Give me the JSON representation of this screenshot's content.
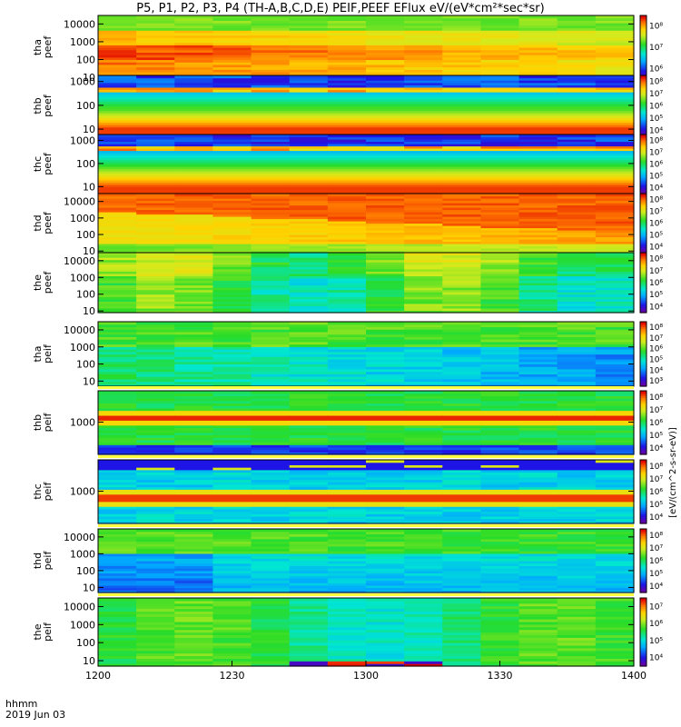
{
  "header": {
    "title": "P5, P1, P2, P3, P4 (TH-A,B,C,D,E) PEIF,PEEF EFlux eV/(eV*cm²*sec*sr)"
  },
  "footer": {
    "time_label": "hhmm",
    "date_label": "2019 Jun 03"
  },
  "colorbar_units_label": "[eV/(cm^2-s-sr-eV)]",
  "chart_data": {
    "type": "heatmap",
    "x_axis": {
      "tick_labels": [
        "1200",
        "1230",
        "1300",
        "1330",
        "1400"
      ],
      "range_minutes": [
        0,
        120
      ]
    },
    "panels": [
      {
        "probe": "tha",
        "species": "peef",
        "ylabel": [
          "tha",
          "peef"
        ],
        "yticks": [
          "10",
          "100",
          "1000",
          "10000"
        ],
        "ylim": [
          8,
          30000
        ],
        "colorbar_ticks": [
          "10⁶",
          "10⁷",
          "10⁸"
        ],
        "cbar_range": [
          5.5,
          8.5
        ]
      },
      {
        "probe": "thb",
        "species": "peef",
        "ylabel": [
          "thb",
          "peef"
        ],
        "yticks": [
          "10",
          "100",
          "1000"
        ],
        "ylim": [
          5,
          1800
        ],
        "colorbar_ticks": [
          "10⁴",
          "10⁵",
          "10⁶",
          "10⁷",
          "10⁸"
        ],
        "cbar_range": [
          3.5,
          8.5
        ]
      },
      {
        "probe": "thc",
        "species": "peef",
        "ylabel": [
          "thc",
          "peef"
        ],
        "yticks": [
          "10",
          "100",
          "1000"
        ],
        "ylim": [
          5,
          1800
        ],
        "colorbar_ticks": [
          "10⁴",
          "10⁵",
          "10⁶",
          "10⁷",
          "10⁸"
        ],
        "cbar_range": [
          3.5,
          8.5
        ]
      },
      {
        "probe": "thd",
        "species": "peef",
        "ylabel": [
          "thd",
          "peef"
        ],
        "yticks": [
          "10",
          "100",
          "1000",
          "10000"
        ],
        "ylim": [
          8,
          30000
        ],
        "colorbar_ticks": [
          "10⁴",
          "10⁵",
          "10⁶",
          "10⁷",
          "10⁸"
        ],
        "cbar_range": [
          3.5,
          8.5
        ]
      },
      {
        "probe": "the",
        "species": "peef",
        "ylabel": [
          "the",
          "peef"
        ],
        "yticks": [
          "10",
          "100",
          "1000",
          "10000"
        ],
        "ylim": [
          8,
          30000
        ],
        "colorbar_ticks": [
          "10⁴",
          "10⁵",
          "10⁶",
          "10⁷",
          "10⁸"
        ],
        "cbar_range": [
          3.5,
          8.5
        ]
      },
      {
        "probe": "tha",
        "species": "peif",
        "ylabel": [
          "tha",
          "peif"
        ],
        "yticks": [
          "10",
          "100",
          "1000",
          "10000"
        ],
        "ylim": [
          5,
          30000
        ],
        "colorbar_ticks": [
          "10³",
          "10⁴",
          "10⁵",
          "10⁶",
          "10⁷",
          "10⁸"
        ],
        "cbar_range": [
          2.5,
          8.5
        ]
      },
      {
        "probe": "thb",
        "species": "peif",
        "ylabel": [
          "thb",
          "peif"
        ],
        "yticks": [
          "1000"
        ],
        "ylim": [
          30,
          30000
        ],
        "colorbar_ticks": [
          "10⁴",
          "10⁵",
          "10⁶",
          "10⁷",
          "10⁸"
        ],
        "cbar_range": [
          3.5,
          8.5
        ]
      },
      {
        "probe": "thc",
        "species": "peif",
        "ylabel": [
          "thc",
          "peif"
        ],
        "yticks": [
          "1000"
        ],
        "ylim": [
          30,
          30000
        ],
        "colorbar_ticks": [
          "10⁴",
          "10⁵",
          "10⁶",
          "10⁷",
          "10⁸"
        ],
        "cbar_range": [
          3.5,
          8.5
        ]
      },
      {
        "probe": "thd",
        "species": "peif",
        "ylabel": [
          "thd",
          "peif"
        ],
        "yticks": [
          "10",
          "100",
          "1000",
          "10000"
        ],
        "ylim": [
          5,
          30000
        ],
        "colorbar_ticks": [
          "10⁴",
          "10⁵",
          "10⁶",
          "10⁷",
          "10⁸"
        ],
        "cbar_range": [
          3.5,
          8.5
        ]
      },
      {
        "probe": "the",
        "species": "peif",
        "ylabel": [
          "the",
          "peif"
        ],
        "yticks": [
          "10",
          "100",
          "1000",
          "10000"
        ],
        "ylim": [
          5,
          30000
        ],
        "colorbar_ticks": [
          "10⁴",
          "10⁵",
          "10⁶",
          "10⁷"
        ],
        "cbar_range": [
          3.5,
          7.5
        ]
      }
    ]
  }
}
